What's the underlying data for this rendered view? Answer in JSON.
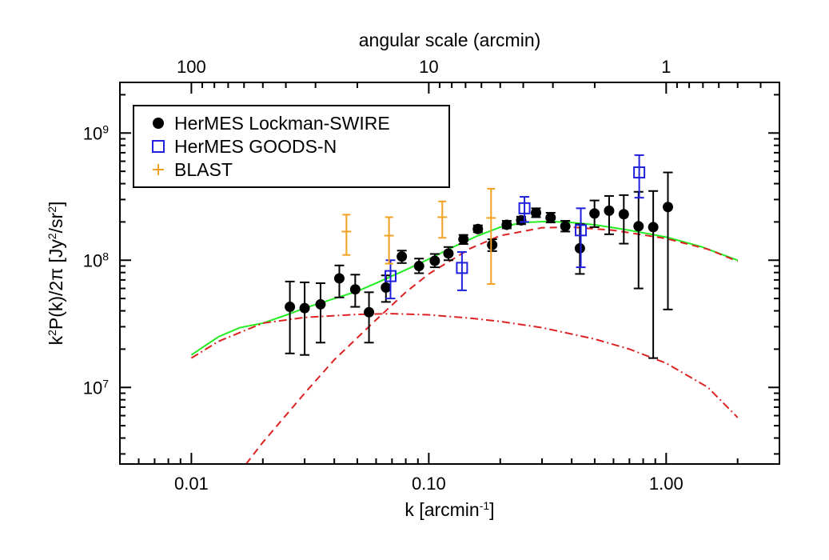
{
  "chart_data": {
    "type": "scatter",
    "xscale": "log",
    "yscale": "log",
    "xlim": [
      0.005,
      3.0
    ],
    "ylim": [
      2500000.0,
      2500000000.0
    ],
    "xlabel": {
      "main": "k [arcmin",
      "sup": "-1",
      "end": "]"
    },
    "ylabel": {
      "a": "k",
      "a_sup": "2",
      "b": "P(k)/2π [Jy",
      "b_sup": "2",
      "c": "/sr",
      "c_sup": "2",
      "d": "]"
    },
    "top_axis": {
      "label": "angular scale (arcmin)",
      "ticks": [
        {
          "value": 100,
          "label": "100"
        },
        {
          "value": 10,
          "label": "10"
        },
        {
          "value": 1,
          "label": "1"
        }
      ]
    },
    "x_ticks": [
      {
        "value": 0.01,
        "label": "0.01"
      },
      {
        "value": 0.1,
        "label": "0.10"
      },
      {
        "value": 1.0,
        "label": "1.00"
      }
    ],
    "y_ticks": [
      {
        "value": 10000000.0,
        "base": "10",
        "exp": "7"
      },
      {
        "value": 100000000.0,
        "base": "10",
        "exp": "8"
      },
      {
        "value": 1000000000.0,
        "base": "10",
        "exp": "9"
      }
    ],
    "legend": {
      "position": "top-left",
      "entries": [
        {
          "label": "HerMES Lockman-SWIRE",
          "marker": "filled-circle",
          "color": "#000000"
        },
        {
          "label": "HerMES GOODS-N",
          "marker": "open-square",
          "color": "#2020dd"
        },
        {
          "label": "BLAST",
          "marker": "plus",
          "color": "#f4a020"
        }
      ]
    },
    "series": [
      {
        "name": "HerMES Lockman-SWIRE",
        "marker": "filled-circle",
        "color": "#000000",
        "points": [
          {
            "x": 0.026,
            "y": 43000000.0,
            "lo": 18500000.0,
            "hi": 68000000.0
          },
          {
            "x": 0.03,
            "y": 42000000.0,
            "lo": 18000000.0,
            "hi": 67000000.0
          },
          {
            "x": 0.035,
            "y": 45000000.0,
            "lo": 22500000.0,
            "hi": 66000000.0
          },
          {
            "x": 0.042,
            "y": 72000000.0,
            "lo": 51000000.0,
            "hi": 91000000.0
          },
          {
            "x": 0.049,
            "y": 59000000.0,
            "lo": 43000000.0,
            "hi": 77000000.0
          },
          {
            "x": 0.056,
            "y": 39000000.0,
            "lo": 22500000.0,
            "hi": 56000000.0
          },
          {
            "x": 0.066,
            "y": 61000000.0,
            "lo": 47000000.0,
            "hi": 76000000.0
          },
          {
            "x": 0.077,
            "y": 107000000.0,
            "lo": 95000000.0,
            "hi": 119000000.0
          },
          {
            "x": 0.091,
            "y": 90000000.0,
            "lo": 79000000.0,
            "hi": 103000000.0
          },
          {
            "x": 0.106,
            "y": 99000000.0,
            "lo": 88000000.0,
            "hi": 112000000.0
          },
          {
            "x": 0.121,
            "y": 113000000.0,
            "lo": 100000000.0,
            "hi": 127000000.0
          },
          {
            "x": 0.14,
            "y": 146000000.0,
            "lo": 134000000.0,
            "hi": 158000000.0
          },
          {
            "x": 0.161,
            "y": 176000000.0,
            "lo": 166000000.0,
            "hi": 188000000.0
          },
          {
            "x": 0.185,
            "y": 132000000.0,
            "lo": 118000000.0,
            "hi": 146000000.0
          },
          {
            "x": 0.213,
            "y": 190000000.0,
            "lo": 178000000.0,
            "hi": 204000000.0
          },
          {
            "x": 0.245,
            "y": 206000000.0,
            "lo": 192000000.0,
            "hi": 220000000.0
          },
          {
            "x": 0.283,
            "y": 236000000.0,
            "lo": 218000000.0,
            "hi": 256000000.0
          },
          {
            "x": 0.326,
            "y": 216000000.0,
            "lo": 198000000.0,
            "hi": 236000000.0
          },
          {
            "x": 0.376,
            "y": 185000000.0,
            "lo": 168000000.0,
            "hi": 204000000.0
          },
          {
            "x": 0.433,
            "y": 124000000.0,
            "lo": 78000000.0,
            "hi": 192000000.0
          },
          {
            "x": 0.499,
            "y": 233000000.0,
            "lo": 182000000.0,
            "hi": 295000000.0
          },
          {
            "x": 0.575,
            "y": 245000000.0,
            "lo": 160000000.0,
            "hi": 320000000.0
          },
          {
            "x": 0.663,
            "y": 230000000.0,
            "lo": 135000000.0,
            "hi": 325000000.0
          },
          {
            "x": 0.765,
            "y": 185000000.0,
            "lo": 60000000.0,
            "hi": 345000000.0
          },
          {
            "x": 0.882,
            "y": 182000000.0,
            "lo": 17000000.0,
            "hi": 350000000.0
          },
          {
            "x": 1.017,
            "y": 262000000.0,
            "lo": 41000000.0,
            "hi": 490000000.0
          }
        ]
      },
      {
        "name": "HerMES GOODS-N",
        "marker": "open-square",
        "color": "#2020dd",
        "points": [
          {
            "x": 0.069,
            "y": 75000000.0,
            "lo": 50000000.0,
            "hi": 100000000.0
          },
          {
            "x": 0.138,
            "y": 87000000.0,
            "lo": 58000000.0,
            "hi": 116000000.0
          },
          {
            "x": 0.253,
            "y": 256000000.0,
            "lo": 200000000.0,
            "hi": 315000000.0
          },
          {
            "x": 0.437,
            "y": 172000000.0,
            "lo": 88000000.0,
            "hi": 256000000.0
          },
          {
            "x": 0.77,
            "y": 490000000.0,
            "lo": 310000000.0,
            "hi": 670000000.0
          }
        ]
      },
      {
        "name": "BLAST",
        "marker": "plus",
        "color": "#f4a020",
        "points": [
          {
            "x": 0.045,
            "y": 168000000.0,
            "lo": 110000000.0,
            "hi": 228000000.0
          },
          {
            "x": 0.068,
            "y": 156000000.0,
            "lo": 94000000.0,
            "hi": 218000000.0
          },
          {
            "x": 0.114,
            "y": 218000000.0,
            "lo": 150000000.0,
            "hi": 290000000.0
          },
          {
            "x": 0.183,
            "y": 215000000.0,
            "lo": 65000000.0,
            "hi": 365000000.0
          }
        ]
      }
    ],
    "curves": [
      {
        "style": "solid",
        "color": "#22ee22",
        "x": [
          0.01,
          0.013,
          0.016,
          0.02,
          0.025,
          0.03,
          0.04,
          0.05,
          0.06,
          0.08,
          0.1,
          0.13,
          0.16,
          0.2,
          0.25,
          0.32,
          0.4,
          0.5,
          0.7,
          1.0,
          1.4,
          2.0
        ],
        "y": [
          18000000.0,
          25000000.0,
          29500000.0,
          32000000.0,
          37000000.0,
          42000000.0,
          50000000.0,
          57000000.0,
          66000000.0,
          84000000.0,
          102000000.0,
          130000000.0,
          155000000.0,
          182000000.0,
          198000000.0,
          202000000.0,
          198000000.0,
          190000000.0,
          172000000.0,
          152000000.0,
          128000000.0,
          100000000.0
        ]
      },
      {
        "style": "dashed",
        "color": "#dd2222",
        "x": [
          0.017,
          0.02,
          0.03,
          0.04,
          0.06,
          0.08,
          0.1,
          0.15,
          0.2,
          0.3,
          0.4,
          0.6,
          1.0,
          1.5,
          2.0
        ],
        "y": [
          2500000.0,
          3700000.0,
          9000000.0,
          16500000.0,
          34000000.0,
          56000000.0,
          78000000.0,
          124000000.0,
          156000000.0,
          180000000.0,
          182000000.0,
          172000000.0,
          148000000.0,
          122000000.0,
          98000000.0
        ]
      },
      {
        "style": "dashdot",
        "color": "#dd2222",
        "x": [
          0.01,
          0.013,
          0.016,
          0.02,
          0.03,
          0.05,
          0.07,
          0.1,
          0.15,
          0.2,
          0.3,
          0.5,
          0.7,
          1.0,
          1.5,
          2.0
        ],
        "y": [
          17000000.0,
          23000000.0,
          27000000.0,
          32000000.0,
          35500000.0,
          37500000.0,
          38000000.0,
          37200000.0,
          35000000.0,
          33000000.0,
          29500000.0,
          24000000.0,
          20000000.0,
          15500000.0,
          10000000.0,
          5800000.0
        ]
      }
    ]
  }
}
